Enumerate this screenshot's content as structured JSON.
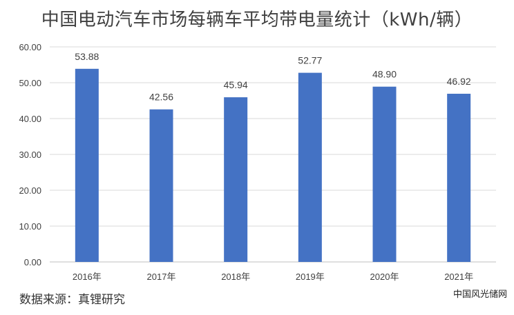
{
  "colors": {
    "bar": "#4472C4",
    "grid": "#D9D9D9",
    "axis": "#BFBFBF",
    "text": "#404040"
  },
  "chart_data": {
    "type": "bar",
    "title": "中国电动汽车市场每辆车平均带电量统计（kWh/辆）",
    "categories": [
      "2016年",
      "2017年",
      "2018年",
      "2019年",
      "2020年",
      "2021年"
    ],
    "values": [
      53.88,
      42.56,
      45.94,
      52.77,
      48.9,
      46.92
    ],
    "data_labels": [
      "53.88",
      "42.56",
      "45.94",
      "52.77",
      "48.90",
      "46.92"
    ],
    "ylim": [
      0,
      60
    ],
    "y_ticks": [
      "0.00",
      "10.00",
      "20.00",
      "30.00",
      "40.00",
      "50.00",
      "60.00"
    ],
    "grid": true,
    "legend": "none"
  },
  "source": "数据来源：真锂研究",
  "watermark": "中国风光储网"
}
